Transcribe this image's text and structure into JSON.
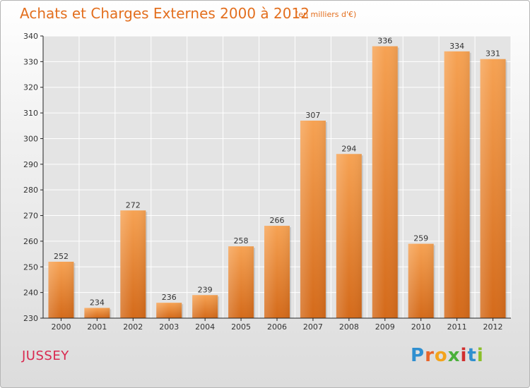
{
  "title": "Achats et Charges Externes 2000 à 2012",
  "subtitle": "(en milliers d'€)",
  "commune": "JUSSEY",
  "logo": {
    "text": "Proxiti",
    "letters": [
      "P",
      "r",
      "o",
      "x",
      "i",
      "t",
      "i"
    ],
    "colors": [
      "#2f8fd0",
      "#e8642a",
      "#f3a31c",
      "#4bb03c",
      "#d12f2f",
      "#2f8fd0",
      "#8bbf2a"
    ]
  },
  "colors": {
    "title": "#e36f1e",
    "commune": "#d9284f",
    "bar_top": "#f6a253",
    "bar_bottom": "#d46a1a",
    "axis": "#222222",
    "grid": "#ffffff"
  },
  "chart_data": {
    "type": "bar",
    "categories": [
      "2000",
      "2001",
      "2002",
      "2003",
      "2004",
      "2005",
      "2006",
      "2007",
      "2008",
      "2009",
      "2010",
      "2011",
      "2012"
    ],
    "values": [
      252,
      234,
      272,
      236,
      239,
      258,
      266,
      307,
      294,
      336,
      259,
      334,
      331
    ],
    "ylim": [
      230,
      340
    ],
    "yticks": [
      230,
      240,
      250,
      260,
      270,
      280,
      290,
      300,
      310,
      320,
      330,
      340
    ],
    "grid": true,
    "data_labels": true
  }
}
